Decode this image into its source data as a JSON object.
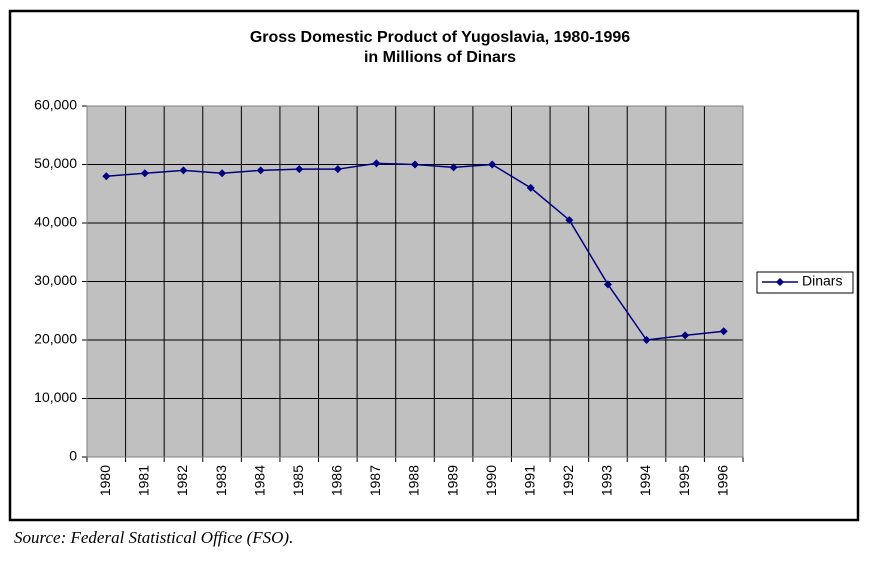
{
  "chart_data": {
    "type": "line",
    "title": "Gross Domestic Product of Yugoslavia, 1980-1996",
    "subtitle": "in Millions of Dinars",
    "categories": [
      "1980",
      "1981",
      "1982",
      "1983",
      "1984",
      "1985",
      "1986",
      "1987",
      "1988",
      "1989",
      "1990",
      "1991",
      "1992",
      "1993",
      "1994",
      "1995",
      "1996"
    ],
    "series": [
      {
        "name": "Dinars",
        "color": "#000080",
        "values": [
          48000,
          48500,
          49000,
          48500,
          49000,
          49200,
          49200,
          50200,
          50000,
          49500,
          50000,
          46000,
          40500,
          29500,
          20000,
          20800,
          21500
        ]
      }
    ],
    "ylim": [
      0,
      60000
    ],
    "yticks": [
      0,
      {
        "value": 10000,
        "label": "10,000"
      },
      {
        "value": 20000,
        "label": "20,000"
      },
      {
        "value": 30000,
        "label": "30,000"
      },
      {
        "value": 40000,
        "label": "40,000"
      },
      {
        "value": 50000,
        "label": "50,000"
      },
      {
        "value": 60000,
        "label": "60,000"
      }
    ],
    "grid": true,
    "legend": "right",
    "source": "Source: Federal Statistical Office (FSO)."
  }
}
